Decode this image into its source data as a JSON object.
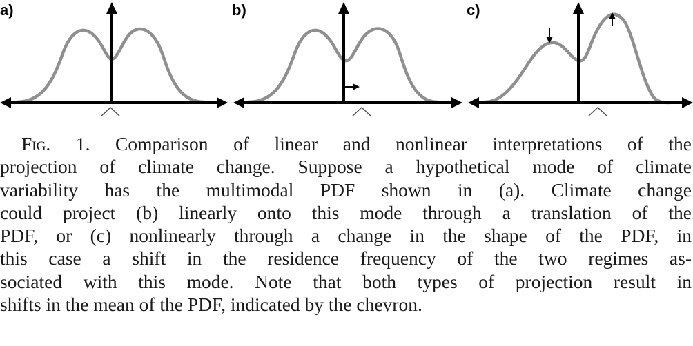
{
  "panels": [
    {
      "label": "a)"
    },
    {
      "label": "b)"
    },
    {
      "label": "c)"
    }
  ],
  "caption": {
    "fig_prefix_cap": "F",
    "fig_prefix_sc": "ig",
    "fig_number": ". 1.",
    "line1_rest": " Comparison of linear and nonlinear interpretations of the",
    "line2": "projection of climate change. Suppose a hypothetical mode of climate",
    "line3": "variability has the multimodal PDF shown in (a). Climate change",
    "line4": "could project (b) linearly onto this mode through a translation of the",
    "line5": "PDF, or (c) nonlinearly through a change in the shape of the PDF, in",
    "line6": "this case a shift in the residence frequency of the two regimes as-",
    "line7": "sociated with this mode. Note that both types of projection result in",
    "line8": "shifts in the mean of the PDF, indicated by the chevron."
  },
  "colors": {
    "curve": "#8f8f8f",
    "axis": "#000000",
    "chevron": "#555555"
  }
}
